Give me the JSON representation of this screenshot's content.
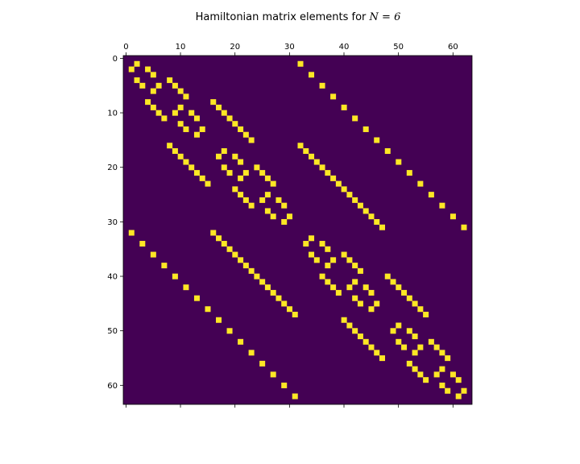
{
  "chart_data": {
    "type": "heatmap",
    "title_prefix": "Hamiltonian matrix elements for ",
    "title_math": "N = 6",
    "size": 64,
    "colors": {
      "zero": "#440154",
      "nonzero": "#fde725"
    },
    "x_ticks": [
      0,
      10,
      20,
      30,
      40,
      50,
      60
    ],
    "y_ticks": [
      0,
      10,
      20,
      30,
      40,
      50,
      60
    ],
    "x_ticks_position": "top",
    "matrix_rule": "Nonzero entries of the N=6 periodic XXZ spin-chain Hamiltonian in the 64 computational basis states: element (i,j) is nonzero when i and j differ by exchanging two adjacent anti-aligned spins (bond k,k+1 with k = 0..5, periodic)."
  }
}
